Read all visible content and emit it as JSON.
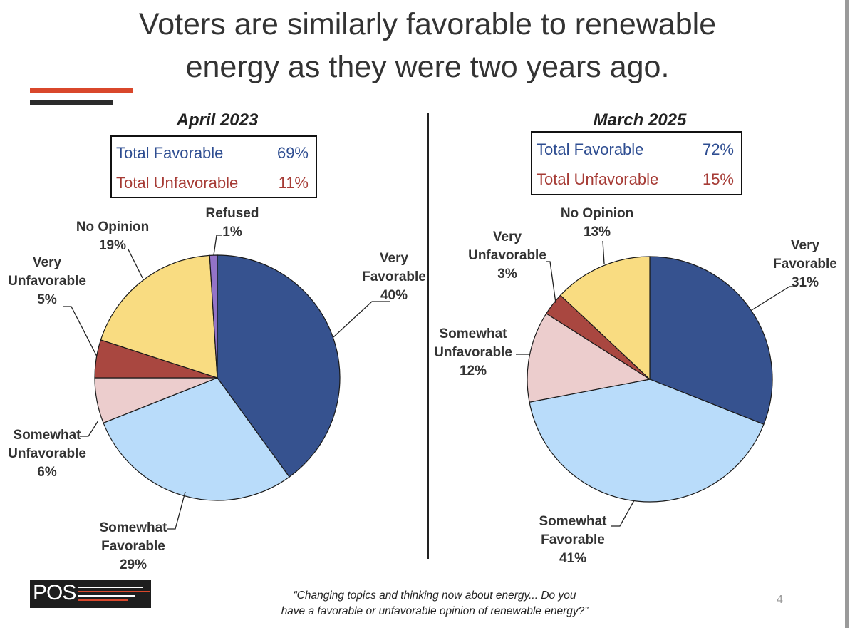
{
  "title_line1": "Voters are similarly favorable to renewable",
  "title_line2": "energy as they were two years ago.",
  "colors": {
    "very_favorable": "#36528f",
    "somewhat_favorable": "#b9dcfa",
    "somewhat_unfavorable": "#eccdcd",
    "very_unfavorable": "#a94740",
    "no_opinion": "#f9dc81",
    "refused": "#9373c8",
    "accent_red": "#d9472b"
  },
  "left": {
    "period": "April 2023",
    "total_favorable_label": "Total Favorable",
    "total_favorable_value": "69%",
    "total_unfavorable_label": "Total Unfavorable",
    "total_unfavorable_value": "11%"
  },
  "right": {
    "period": "March 2025",
    "total_favorable_label": "Total Favorable",
    "total_favorable_value": "72%",
    "total_unfavorable_label": "Total Unfavorable",
    "total_unfavorable_value": "15%"
  },
  "chart_data": [
    {
      "type": "pie",
      "title": "April 2023",
      "slices": [
        {
          "label": "Very Favorable",
          "value": 40,
          "value_label": "40%"
        },
        {
          "label": "Somewhat Favorable",
          "value": 29,
          "value_label": "29%"
        },
        {
          "label": "Somewhat Unfavorable",
          "value": 6,
          "value_label": "6%"
        },
        {
          "label": "Very Unfavorable",
          "value": 5,
          "value_label": "5%"
        },
        {
          "label": "No Opinion",
          "value": 19,
          "value_label": "19%"
        },
        {
          "label": "Refused",
          "value": 1,
          "value_label": "1%"
        }
      ]
    },
    {
      "type": "pie",
      "title": "March 2025",
      "slices": [
        {
          "label": "Very Favorable",
          "value": 31,
          "value_label": "31%"
        },
        {
          "label": "Somewhat Favorable",
          "value": 41,
          "value_label": "41%"
        },
        {
          "label": "Somewhat Unfavorable",
          "value": 12,
          "value_label": "12%"
        },
        {
          "label": "Very Unfavorable",
          "value": 3,
          "value_label": "3%"
        },
        {
          "label": "No Opinion",
          "value": 13,
          "value_label": "13%"
        }
      ]
    }
  ],
  "footer": {
    "logo_text": "POS",
    "question_line1": "“Changing topics and thinking now about energy... Do you",
    "question_line2": "have a favorable or unfavorable opinion of renewable energy?”",
    "page_number": "4"
  }
}
